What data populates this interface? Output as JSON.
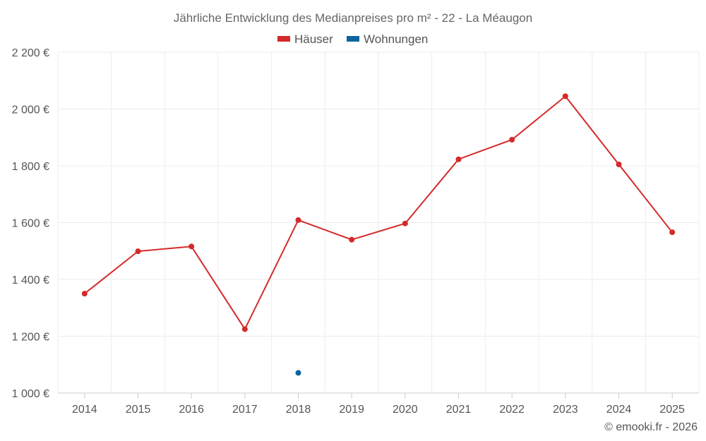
{
  "chart_data": {
    "type": "line",
    "title": "Jährliche Entwicklung des Medianpreises pro m² - 22 - La Méaugon",
    "categories": [
      "2014",
      "2015",
      "2016",
      "2017",
      "2018",
      "2019",
      "2020",
      "2021",
      "2022",
      "2023",
      "2024",
      "2025"
    ],
    "series": [
      {
        "name": "Häuser",
        "color": "#d42a2a",
        "values": [
          1350,
          1499,
          1516,
          1225,
          1609,
          1540,
          1597,
          1823,
          1892,
          2045,
          1805,
          1566
        ]
      },
      {
        "name": "Wohnungen",
        "color": "#0b64a0",
        "values": [
          null,
          null,
          null,
          null,
          1071,
          null,
          null,
          null,
          null,
          null,
          null,
          null
        ]
      }
    ],
    "ylim": [
      1000,
      2200
    ],
    "yticks": [
      1000,
      1200,
      1400,
      1600,
      1800,
      2000,
      2200
    ],
    "ytick_labels": [
      "1 000 €",
      "1 200 €",
      "1 400 €",
      "1 600 €",
      "1 800 €",
      "2 000 €",
      "2 200 €"
    ],
    "xlabel": "",
    "ylabel": "",
    "grid": true,
    "legend_position": "top-center"
  },
  "credit": "© emooki.fr - 2026"
}
